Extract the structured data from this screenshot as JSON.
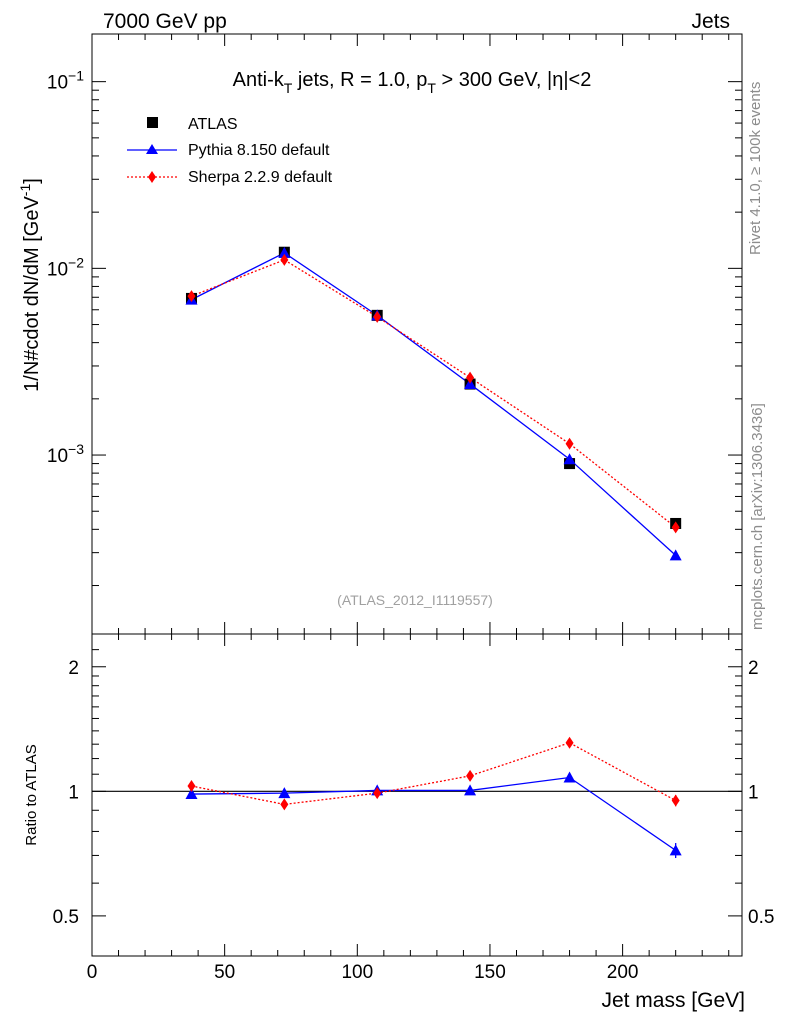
{
  "header": {
    "left": "7000 GeV pp",
    "right": "Jets"
  },
  "side_labels": {
    "top": "Rivet 4.1.0, ≥ 100k events",
    "bottom": "mcplots.cern.ch [arXiv:1306.3436]"
  },
  "colors": {
    "atlas": "#000000",
    "pythia": "#0000ff",
    "sherpa": "#ff0000"
  },
  "chart_data": [
    {
      "type": "line",
      "panel": "main",
      "title": {
        "prefix": "Anti-k",
        "sub1": "T",
        "mid": " jets, R = 1.0, p",
        "sub2": "T",
        "suffix": " > 300 GeV, |η|<2"
      },
      "ylabel": {
        "main": "1/N#cdot dN/dM [GeV",
        "sup": "-1",
        "end": "]"
      },
      "yscale": "log",
      "ylim": [
        0.00011,
        0.18
      ],
      "xlim": [
        0,
        245
      ],
      "ytick_labels": [
        {
          "value": 0.1,
          "base": "10",
          "exp": "−1"
        },
        {
          "value": 0.01,
          "base": "10",
          "exp": "−2"
        },
        {
          "value": 0.001,
          "base": "10",
          "exp": "−3"
        }
      ],
      "watermark": "(ATLAS_2012_I1119557)",
      "series": [
        {
          "name": "ATLAS",
          "marker": "square",
          "x": [
            37.5,
            72.5,
            107.5,
            142.5,
            180,
            220
          ],
          "y": [
            0.0069,
            0.0122,
            0.0056,
            0.0024,
            0.0009,
            0.00043
          ]
        },
        {
          "name": "Pythia 8.150 default",
          "marker": "triangle",
          "line": "solid",
          "x": [
            37.5,
            72.5,
            107.5,
            142.5,
            180,
            220
          ],
          "y": [
            0.0068,
            0.0121,
            0.0056,
            0.0024,
            0.00095,
            0.00029
          ]
        },
        {
          "name": "Sherpa 2.2.9 default",
          "marker": "diamond",
          "line": "dotted",
          "x": [
            37.5,
            72.5,
            107.5,
            142.5,
            180,
            220
          ],
          "y": [
            0.0071,
            0.0111,
            0.0055,
            0.0026,
            0.00115,
            0.00041
          ]
        }
      ]
    },
    {
      "type": "line",
      "panel": "ratio",
      "ylabel": "Ratio to ATLAS",
      "xlabel": "Jet mass [GeV]",
      "yscale": "log",
      "ylim": [
        0.4,
        2.4
      ],
      "xlim": [
        0,
        245
      ],
      "xticks": [
        0,
        50,
        100,
        150,
        200
      ],
      "ytick_labels": [
        "0.5",
        "1",
        "2"
      ],
      "ytick_values": [
        0.5,
        1,
        2
      ],
      "series": [
        {
          "name": "Pythia 8.150 default",
          "marker": "triangle",
          "line": "solid",
          "x": [
            37.5,
            72.5,
            107.5,
            142.5,
            180,
            220
          ],
          "y": [
            0.985,
            0.99,
            1.005,
            1.005,
            1.08,
            0.72
          ],
          "err": [
            0.01,
            0.01,
            0.01,
            0.01,
            0.02,
            0.03
          ]
        },
        {
          "name": "Sherpa 2.2.9 default",
          "marker": "diamond",
          "line": "dotted",
          "x": [
            37.5,
            72.5,
            107.5,
            142.5,
            180,
            220
          ],
          "y": [
            1.03,
            0.93,
            0.99,
            1.09,
            1.31,
            0.95
          ],
          "err": [
            0.01,
            0.01,
            0.01,
            0.01,
            0.02,
            0.03
          ]
        }
      ]
    }
  ]
}
